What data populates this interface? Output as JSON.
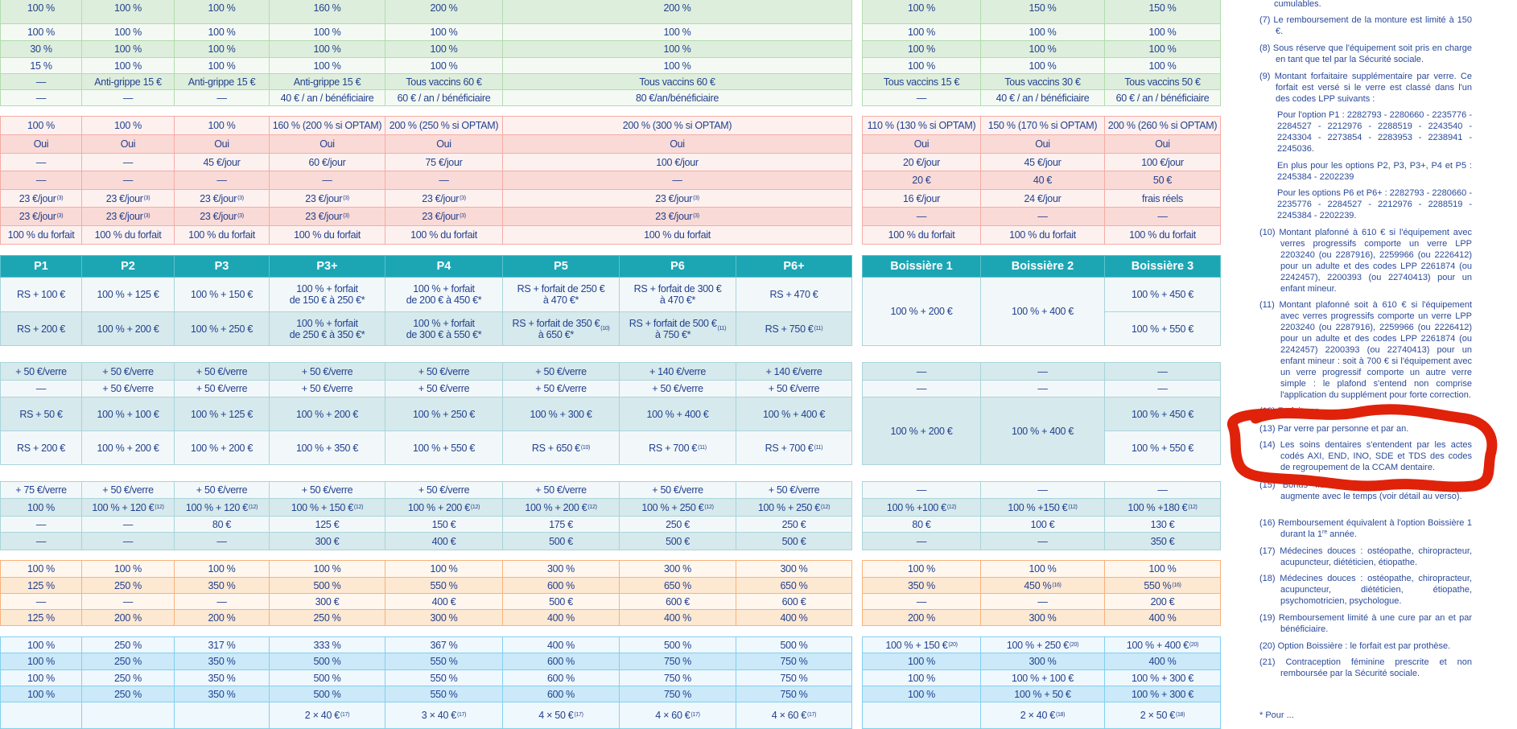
{
  "main": {
    "header": [
      "P1",
      "P2",
      "P3",
      "P3+",
      "P4",
      "P5",
      "P6",
      "P6+"
    ],
    "green": [
      [
        "100 %",
        "100 %",
        "100 %",
        "160 %",
        "200 %",
        "200 %"
      ],
      [
        "100 %",
        "100 %",
        "100 %",
        "100 %",
        "100 %",
        "100 %"
      ],
      [
        "30 %",
        "100 %",
        "100 %",
        "100 %",
        "100 %",
        "100 %"
      ],
      [
        "15 %",
        "100 %",
        "100 %",
        "100 %",
        "100 %",
        "100 %"
      ],
      [
        "—",
        "Anti-grippe 15 €",
        "Anti-grippe 15 €",
        "Anti-grippe 15 €",
        "Tous vaccins 60 €",
        "Tous vaccins 60 €"
      ],
      [
        "—",
        "—",
        "—",
        "40 € / an / bénéficiaire",
        "60 € / an / bénéficiaire",
        "80 €/an/bénéficiaire"
      ]
    ],
    "pink": [
      [
        "100 %",
        "100 %",
        "100 %",
        "160 % (200 % si OPTAM)",
        "200 % (250 % si OPTAM)",
        "200 % (300 % si OPTAM)"
      ],
      [
        "Oui",
        "Oui",
        "Oui",
        "Oui",
        "Oui",
        "Oui"
      ],
      [
        "—",
        "—",
        "45 €/jour",
        "60 €/jour",
        "75 €/jour",
        "100 €/jour"
      ],
      [
        "—",
        "—",
        "—",
        "—",
        "—",
        "—"
      ],
      [
        {
          "t": "23 €/jour",
          "s": "(3)"
        },
        {
          "t": "23 €/jour",
          "s": "(3)"
        },
        {
          "t": "23 €/jour",
          "s": "(3)"
        },
        {
          "t": "23 €/jour",
          "s": "(3)"
        },
        {
          "t": "23 €/jour",
          "s": "(3)"
        },
        {
          "t": "23 €/jour",
          "s": "(3)"
        }
      ],
      [
        {
          "t": "23 €/jour",
          "s": "(3)"
        },
        {
          "t": "23 €/jour",
          "s": "(3)"
        },
        {
          "t": "23 €/jour",
          "s": "(3)"
        },
        {
          "t": "23 €/jour",
          "s": "(3)"
        },
        {
          "t": "23 €/jour",
          "s": "(3)"
        },
        {
          "t": "23 €/jour",
          "s": "(3)"
        }
      ],
      [
        "100 % du forfait",
        "100 % du forfait",
        "100 % du forfait",
        "100 % du forfait",
        "100 % du forfait",
        "100 % du forfait"
      ]
    ],
    "equipement": [
      [
        "RS + 100 €",
        "100 % + 125 €",
        "100 % + 150 €",
        "100 % + forfait\nde 150 € à 250 €*",
        "100 % + forfait\nde 200 € à 450 €*",
        "RS + forfait de 250 €\nà 470 €*",
        "RS + forfait de 300 €\nà 470 €*",
        "RS + 470 €"
      ],
      [
        "RS + 200 €",
        "100 % + 200 €",
        "100 % + 250 €",
        "100 % + forfait\nde 250 € à 350 €*",
        "100 % + forfait\nde 300 € à 550 €*",
        {
          "t": "RS + forfait de 350 €\nà 650 €*",
          "s": "(10)"
        },
        {
          "t": "RS + forfait de 500 €\nà 750 €*",
          "s": "(11)"
        },
        {
          "t": "RS + 750 €",
          "s": "(11)"
        }
      ]
    ],
    "verres": [
      [
        "+ 50 €/verre",
        "+ 50 €/verre",
        "+ 50 €/verre",
        "+ 50 €/verre",
        "+ 50 €/verre",
        "+ 50 €/verre",
        "+ 140 €/verre",
        "+ 140 €/verre"
      ],
      [
        "—",
        "+ 50 €/verre",
        "+ 50 €/verre",
        "+ 50 €/verre",
        "+ 50 €/verre",
        "+ 50 €/verre",
        "+ 50 €/verre",
        "+ 50 €/verre"
      ],
      [
        "RS + 50 €",
        "100 % + 100 €",
        "100 % + 125 €",
        "100 % + 200 €",
        "100 % + 250 €",
        "100 % + 300 €",
        "100 % + 400 €",
        "100 % + 400 €"
      ],
      [
        "RS + 200 €",
        "100 % + 200 €",
        "100 % + 200 €",
        "100 % + 350 €",
        "100 % + 550 €",
        {
          "t": "RS + 650 €",
          "s": "(10)"
        },
        {
          "t": "RS + 700 €",
          "s": "(11)"
        },
        {
          "t": "RS + 700 €",
          "s": "(11)"
        }
      ]
    ],
    "dentaire": [
      [
        "+ 75 €/verre",
        "+ 50 €/verre",
        "+ 50 €/verre",
        "+ 50 €/verre",
        "+ 50 €/verre",
        "+ 50 €/verre",
        "+ 50 €/verre",
        "+ 50 €/verre"
      ],
      [
        "100 %",
        {
          "t": "100 % + 120 €",
          "s": "(12)"
        },
        {
          "t": "100 % + 120 €",
          "s": "(12)"
        },
        {
          "t": "100 % + 150 €",
          "s": "(12)"
        },
        {
          "t": "100 % + 200 €",
          "s": "(12)"
        },
        {
          "t": "100 % + 200 €",
          "s": "(12)"
        },
        {
          "t": "100 % + 250 €",
          "s": "(12)"
        },
        {
          "t": "100 % + 250 €",
          "s": "(12)"
        }
      ],
      [
        "—",
        "—",
        "80 €",
        "125 €",
        "150 €",
        "175 €",
        "250 €",
        "250 €"
      ],
      [
        "—",
        "—",
        "—",
        "300 €",
        "400 €",
        "500 €",
        "500 €",
        "500 €"
      ]
    ],
    "orange": [
      [
        "100 %",
        "100 %",
        "100 %",
        "100 %",
        "100 %",
        "300 %",
        "300 %",
        "300 %"
      ],
      [
        "125 %",
        "250 %",
        "350 %",
        "500 %",
        "550 %",
        "600 %",
        "650 %",
        "650 %"
      ],
      [
        "—",
        "—",
        "—",
        "300 €",
        "400 €",
        "500 €",
        "600 €",
        "600 €"
      ],
      [
        "125 %",
        "200 %",
        "200 %",
        "250 %",
        "300 %",
        "400 %",
        "400 %",
        "400 %"
      ]
    ],
    "blue": [
      [
        "100 %",
        "250 %",
        "317 %",
        "333 %",
        "367 %",
        "400 %",
        "500 %",
        "500 %"
      ],
      [
        "100 %",
        "250 %",
        "350 %",
        "500 %",
        "550 %",
        "600 %",
        "750 %",
        "750 %"
      ],
      [
        "100 %",
        "250 %",
        "350 %",
        "500 %",
        "550 %",
        "600 %",
        "750 %",
        "750 %"
      ],
      [
        "100 %",
        "250 %",
        "350 %",
        "500 %",
        "550 %",
        "600 %",
        "750 %",
        "750 %"
      ],
      [
        "",
        "",
        "",
        {
          "t": "2 × 40 €",
          "s": "(17)"
        },
        {
          "t": "3 × 40 €",
          "s": "(17)"
        },
        {
          "t": "4 × 50 €",
          "s": "(17)"
        },
        {
          "t": "4 × 60 €",
          "s": "(17)"
        },
        {
          "t": "4 × 60 €",
          "s": "(17)"
        }
      ]
    ]
  },
  "boissiere": {
    "header": [
      "Boissière 1",
      "Boissière 2",
      "Boissière 3"
    ],
    "green": [
      [
        "100 %",
        "150 %",
        "150 %"
      ],
      [
        "100 %",
        "100 %",
        "100 %"
      ],
      [
        "100 %",
        "100 %",
        "100 %"
      ],
      [
        "100 %",
        "100 %",
        "100 %"
      ],
      [
        "Tous vaccins 15 €",
        "Tous vaccins 30 €",
        "Tous vaccins 50 €"
      ],
      [
        "—",
        "40 € / an / bénéficiaire",
        "60 € / an / bénéficiaire"
      ]
    ],
    "pink": [
      [
        "110 % (130 % si OPTAM)",
        "150 % (170 % si OPTAM)",
        "200 % (260 % si OPTAM)"
      ],
      [
        "Oui",
        "Oui",
        "Oui"
      ],
      [
        "20 €/jour",
        "45 €/jour",
        "100 €/jour"
      ],
      [
        "20 €",
        "40 €",
        "50 €"
      ],
      [
        "16 €/jour",
        "24 €/jour",
        "frais réels"
      ],
      [
        "—",
        "—",
        "—"
      ],
      [
        "100 % du forfait",
        "100 % du forfait",
        "100 % du forfait"
      ]
    ],
    "equipement": [
      [
        "100 % + 200 €",
        "100 % + 400 €",
        "100 % + 450 €"
      ],
      [
        "100 % + 550 €"
      ]
    ],
    "verres": [
      [
        "—",
        "—",
        "—"
      ],
      [
        "—",
        "—",
        "—"
      ],
      [
        "100 % + 200 €",
        "100 % + 400 €",
        "100 % + 450 €"
      ],
      [
        "100 % + 550 €"
      ]
    ],
    "dentaire": [
      [
        "—",
        "—",
        "—"
      ],
      [
        {
          "t": "100 % +100 €",
          "s": "(12)"
        },
        {
          "t": "100 % +150 €",
          "s": "(12)"
        },
        {
          "t": "100 % +180 €",
          "s": "(12)"
        }
      ],
      [
        "80 €",
        "100 €",
        "130 €"
      ],
      [
        "—",
        "—",
        "350 €"
      ]
    ],
    "orange": [
      [
        "100 %",
        "100 %",
        "100 %"
      ],
      [
        "350 %",
        {
          "t": "450 %",
          "s": "(16)"
        },
        {
          "t": "550 %",
          "s": "(16)"
        }
      ],
      [
        "—",
        "—",
        "200 €"
      ],
      [
        "200 %",
        "300 %",
        "400 %"
      ]
    ],
    "blue": [
      [
        {
          "t": "100 % + 150 €",
          "s": "(20)"
        },
        {
          "t": "100 % + 250 €",
          "s": "(20)"
        },
        {
          "t": "100 % + 400 €",
          "s": "(20)"
        }
      ],
      [
        "100 %",
        "300 %",
        "400 %"
      ],
      [
        "100 %",
        "100 % + 100 €",
        "100 % + 300 €"
      ],
      [
        "100 %",
        "100 % + 50 €",
        "100 % + 300 €"
      ],
      [
        "",
        {
          "t": "2 × 40 €",
          "s": "(18)"
        },
        {
          "t": "2 × 50 €",
          "s": "(18)"
        }
      ]
    ]
  },
  "notes": {
    "n6_end": "cumulables.",
    "n7": "(7) Le remboursement de la monture est limité à 150 €.",
    "n8": "(8) Sous réserve que l'équipement soit pris en charge en tant que tel par la Sécurité sociale.",
    "n9": "(9) Montant forfaitaire supplémentaire par verre. Ce forfait est versé si le verre est classé dans l'un des codes LPP suivants :",
    "n9_p1": "Pour l'option P1 : 2282793 - 2280660 - 2235776 - 2284527 - 2212976 - 2288519 - 2243540 - 2243304 - 2273854 - 2283953 - 2238941 - 2245036.",
    "n9_p2": "En plus pour les options P2, P3, P3+, P4 et P5 : 2245384 - 2202239",
    "n9_p3": "Pour les options P6 et P6+ : 2282793 - 2280660 - 2235776 - 2284527 - 2212976 - 2288519 - 2245384 - 2202239.",
    "n10": "(10) Montant plafonné à 610 € si l'équipement avec verres progressifs comporte un verre LPP 2203240 (ou 2287916), 2259966 (ou 2226412) pour un adulte et des codes LPP 2261874 (ou 2242457), 2200393 (ou 22740413) pour un enfant mineur.",
    "n11": "(11) Montant plafonné soit à 610 € si l'équipement avec verres progressifs comporte un verre LPP 2203240 (ou 2287916), 2259966 (ou 2226412) pour un adulte et des codes LPP 2261874 (ou 2242457) 2200393 (ou 22740413) pour un enfant mineur : soit à 700 € si l'équipement avec un verre progressif comporte un autre verre simple : le plafond s'entend non comprise l'application du supplément pour forte correction.",
    "n12": "(12) Forfait par",
    "n13": "(13) Par verre par personne et par an.",
    "n14": "(14) Les soins dentaires s'entendent par les actes codés AXI, END, INO, SDE et TDS des codes de regroupement de la CCAM dentaire.",
    "n15": "(15) Bonus fidélité : le montant des dépenses augmente avec le temps (voir détail au verso).",
    "n16": "(16) Remboursement équivalent à l'option Boissière 1 durant la 1",
    "n16_sup": "re",
    "n16_end": " année.",
    "n17": "(17) Médecines douces : ostéopathe, chiropracteur, acupuncteur, diététicien, étiopathe.",
    "n18": "(18) Médecines douces : ostéopathe, chiropracteur, acupuncteur, diététicien, étiopathe, psychomotricien, psychologue.",
    "n19": "(19) Remboursement limité à une cure par an et par bénéficiaire.",
    "n20": "(20) Option Boissière : le forfait est par prothèse.",
    "n21": "(21) Contraception féminine prescrite et non remboursée par la Sécurité sociale.",
    "footnote": "* Pour ..."
  },
  "colors": {
    "text": "#23418f",
    "header": "#1ca6b4",
    "annotation": "#e0220a"
  }
}
